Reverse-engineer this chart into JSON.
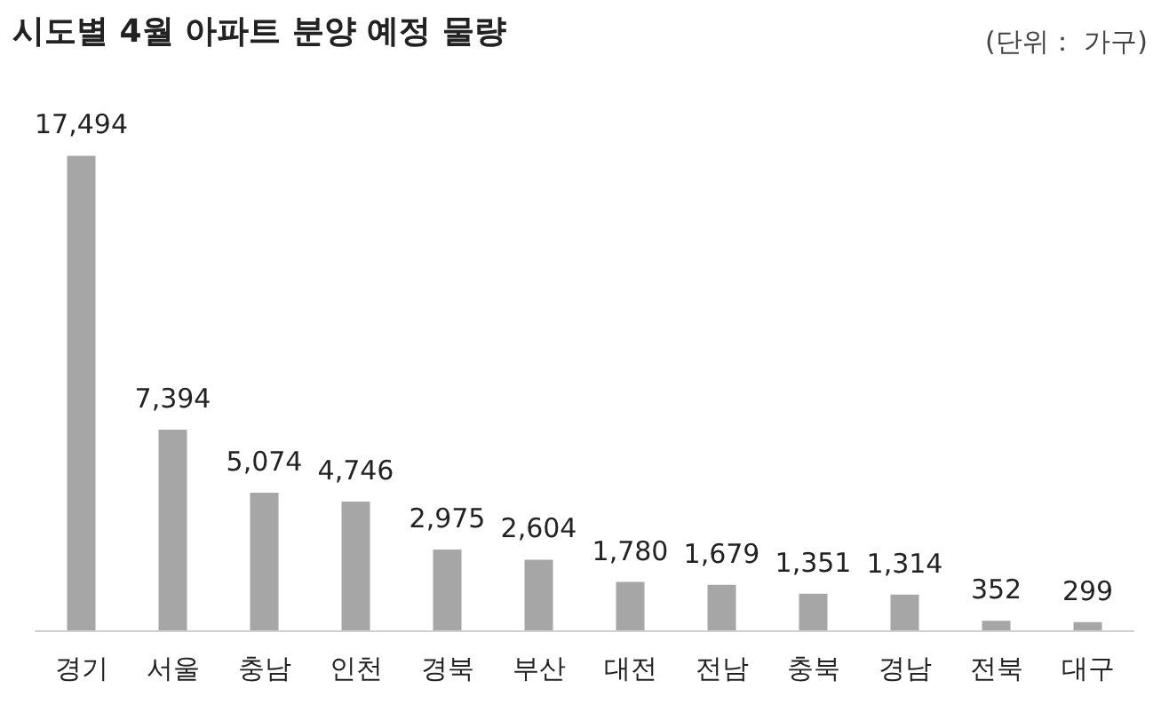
{
  "chart_data": {
    "type": "bar",
    "title": "시도별 4월 아파트 분양 예정 물량",
    "annotations": [
      "(단위： 가구)"
    ],
    "categories": [
      "경기",
      "서울",
      "충남",
      "인천",
      "경북",
      "부산",
      "대전",
      "전남",
      "충북",
      "경남",
      "전북",
      "대구"
    ],
    "values": [
      17494,
      7394,
      5074,
      4746,
      2975,
      2604,
      1780,
      1679,
      1351,
      1314,
      352,
      299
    ],
    "value_labels": [
      "17,494",
      "7,394",
      "5,074",
      "4,746",
      "2,975",
      "2,604",
      "1,780",
      "1,679",
      "1,351",
      "1,314",
      "352",
      "299"
    ],
    "color": "#a6a6a6"
  }
}
